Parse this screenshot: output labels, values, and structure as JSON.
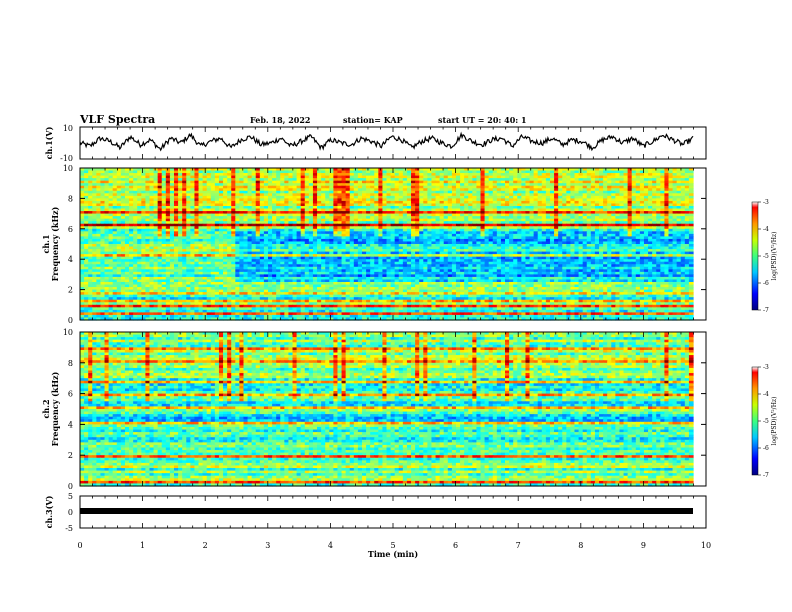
{
  "header": {
    "title": "VLF Spectra",
    "date": "Feb. 18, 2022",
    "station": "station= KAP",
    "start": "start  UT =   20: 40: 1"
  },
  "chart_data": [
    {
      "type": "line",
      "name": "ch1-waveform",
      "ylabel": "ch.1(V)",
      "ylim": [
        -10,
        10
      ],
      "yticks": [
        "10",
        "-10"
      ],
      "xlim": [
        0,
        10
      ],
      "approx_envelope": [
        0,
        -2,
        3,
        1,
        -3,
        4,
        -1,
        2,
        -4,
        3,
        0,
        5,
        -2,
        1,
        3,
        -3,
        2,
        4,
        -1,
        0,
        3,
        -2,
        1,
        4,
        -3,
        2,
        0,
        -1,
        3,
        1,
        -2,
        4,
        2,
        -3,
        1,
        3,
        0,
        -2,
        5,
        1,
        -1,
        2,
        3,
        -2,
        4,
        1,
        0,
        3,
        -1,
        2,
        1,
        -3,
        2,
        4,
        0,
        3,
        -2,
        1,
        5,
        2,
        -1,
        3
      ]
    },
    {
      "type": "heatmap",
      "name": "ch1-spectrogram",
      "ylabel_line1": "ch.1",
      "ylabel_line2": "Frequency (kHz)",
      "ylim": [
        0,
        10
      ],
      "yticks": [
        "0",
        "2",
        "4",
        "6",
        "8",
        "10"
      ],
      "xlim": [
        0,
        10
      ],
      "colorbar": {
        "label": "log(PSD)(V²/Hz)",
        "range": [
          -7,
          -3
        ],
        "ticks": [
          "-3",
          "-4",
          "-5",
          "-6",
          "-7"
        ]
      }
    },
    {
      "type": "heatmap",
      "name": "ch2-spectrogram",
      "ylabel_line1": "ch.2",
      "ylabel_line2": "Frequency (kHz)",
      "ylim": [
        0,
        10
      ],
      "yticks": [
        "0",
        "2",
        "4",
        "6",
        "8",
        "10"
      ],
      "xlim": [
        0,
        10
      ],
      "colorbar": {
        "label": "log(PSD)(V²/Hz)",
        "range": [
          -7,
          -3
        ],
        "ticks": [
          "-3",
          "-4",
          "-5",
          "-6",
          "-7"
        ]
      }
    },
    {
      "type": "line",
      "name": "ch3-waveform",
      "ylabel": "ch.3(V)",
      "ylim": [
        -5,
        5
      ],
      "yticks": [
        "5",
        "0",
        "-5"
      ],
      "xlim": [
        0,
        10
      ],
      "value": -0.3
    }
  ],
  "x_axis": {
    "label": "Time  (min)",
    "ticks": [
      "0",
      "1",
      "2",
      "3",
      "4",
      "5",
      "6",
      "7",
      "8",
      "9",
      "10"
    ]
  }
}
